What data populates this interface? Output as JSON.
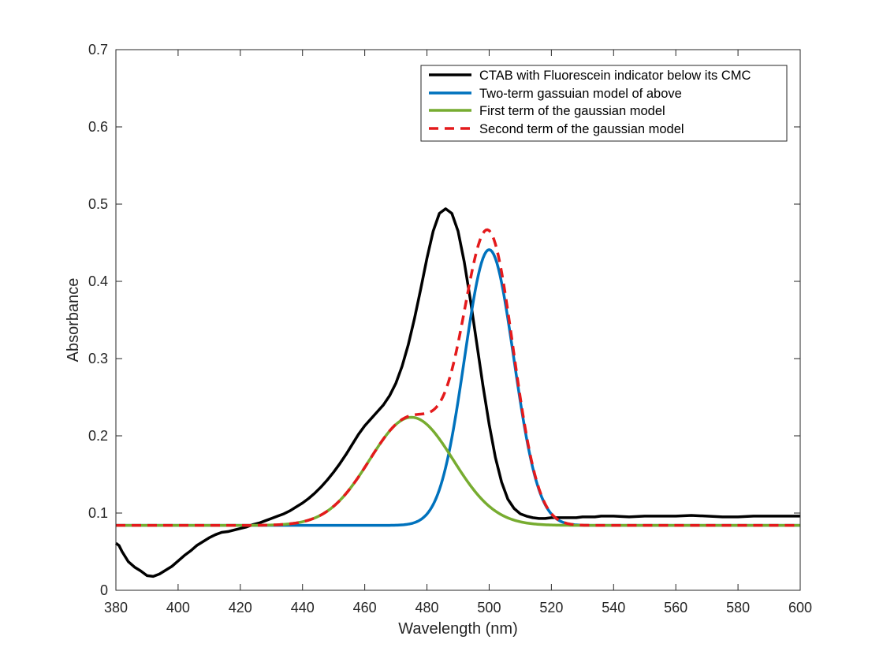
{
  "chart_data": {
    "type": "line",
    "title": "",
    "xlabel": "Wavelength (nm)",
    "ylabel": "Absorbance",
    "xlim": [
      380,
      600
    ],
    "ylim": [
      0,
      0.7
    ],
    "xticks": [
      380,
      400,
      420,
      440,
      460,
      480,
      500,
      520,
      540,
      560,
      580,
      600
    ],
    "yticks": [
      0,
      0.1,
      0.2,
      0.3,
      0.4,
      0.5,
      0.6,
      0.7
    ],
    "xtick_labels": [
      "380",
      "400",
      "420",
      "440",
      "460",
      "480",
      "500",
      "520",
      "540",
      "560",
      "580",
      "600"
    ],
    "ytick_labels": [
      "0",
      "0.1",
      "0.2",
      "0.3",
      "0.4",
      "0.5",
      "0.6",
      "0.7"
    ],
    "grid": false,
    "legend_position": "top-right",
    "series": [
      {
        "name": "CTAB with Fluorescein indicator below its CMC",
        "color": "#000000",
        "style": "solid",
        "x": [
          380,
          381,
          382,
          384,
          386,
          388,
          390,
          392,
          394,
          396,
          398,
          400,
          402,
          404,
          406,
          408,
          410,
          412,
          414,
          416,
          418,
          420,
          422,
          424,
          426,
          428,
          430,
          432,
          434,
          436,
          438,
          440,
          442,
          444,
          446,
          448,
          450,
          452,
          454,
          456,
          458,
          460,
          462,
          464,
          466,
          468,
          470,
          472,
          474,
          476,
          478,
          480,
          482,
          484,
          486,
          488,
          490,
          492,
          494,
          496,
          498,
          500,
          502,
          504,
          506,
          508,
          510,
          512,
          514,
          516,
          518,
          520,
          522,
          524,
          526,
          528,
          530,
          532,
          534,
          536,
          540,
          545,
          550,
          555,
          560,
          565,
          570,
          575,
          580,
          585,
          590,
          595,
          600
        ],
        "y": [
          0.061,
          0.058,
          0.05,
          0.037,
          0.03,
          0.025,
          0.019,
          0.018,
          0.021,
          0.026,
          0.031,
          0.038,
          0.045,
          0.051,
          0.058,
          0.063,
          0.068,
          0.072,
          0.075,
          0.076,
          0.078,
          0.08,
          0.082,
          0.085,
          0.087,
          0.09,
          0.093,
          0.096,
          0.099,
          0.103,
          0.108,
          0.113,
          0.119,
          0.126,
          0.134,
          0.143,
          0.153,
          0.164,
          0.176,
          0.189,
          0.202,
          0.213,
          0.222,
          0.231,
          0.24,
          0.252,
          0.268,
          0.29,
          0.318,
          0.352,
          0.39,
          0.43,
          0.465,
          0.488,
          0.494,
          0.488,
          0.465,
          0.425,
          0.375,
          0.32,
          0.265,
          0.215,
          0.172,
          0.14,
          0.118,
          0.106,
          0.099,
          0.096,
          0.094,
          0.093,
          0.093,
          0.094,
          0.094,
          0.094,
          0.094,
          0.094,
          0.095,
          0.095,
          0.095,
          0.096,
          0.096,
          0.095,
          0.096,
          0.096,
          0.096,
          0.097,
          0.096,
          0.095,
          0.095,
          0.096,
          0.096,
          0.096,
          0.096
        ]
      },
      {
        "name": "Two-term gassuian model of above",
        "color": "#0072BD",
        "style": "solid",
        "gaussian": {
          "baseline": 0.084,
          "a": 0.357,
          "b": 500,
          "c": 11.2
        }
      },
      {
        "name": "First term of the gaussian model",
        "color": "#77AC30",
        "style": "solid",
        "gaussian": {
          "baseline": 0.084,
          "a": 0.14,
          "b": 475,
          "c": 19
        }
      },
      {
        "name": "Second term of the gaussian model",
        "color": "#E41A1C",
        "style": "dashed",
        "two_gaussians": [
          {
            "a": 0.14,
            "b": 475,
            "c": 19
          },
          {
            "a": 0.357,
            "b": 500,
            "c": 11.2
          }
        ],
        "baseline": 0.084
      }
    ]
  }
}
